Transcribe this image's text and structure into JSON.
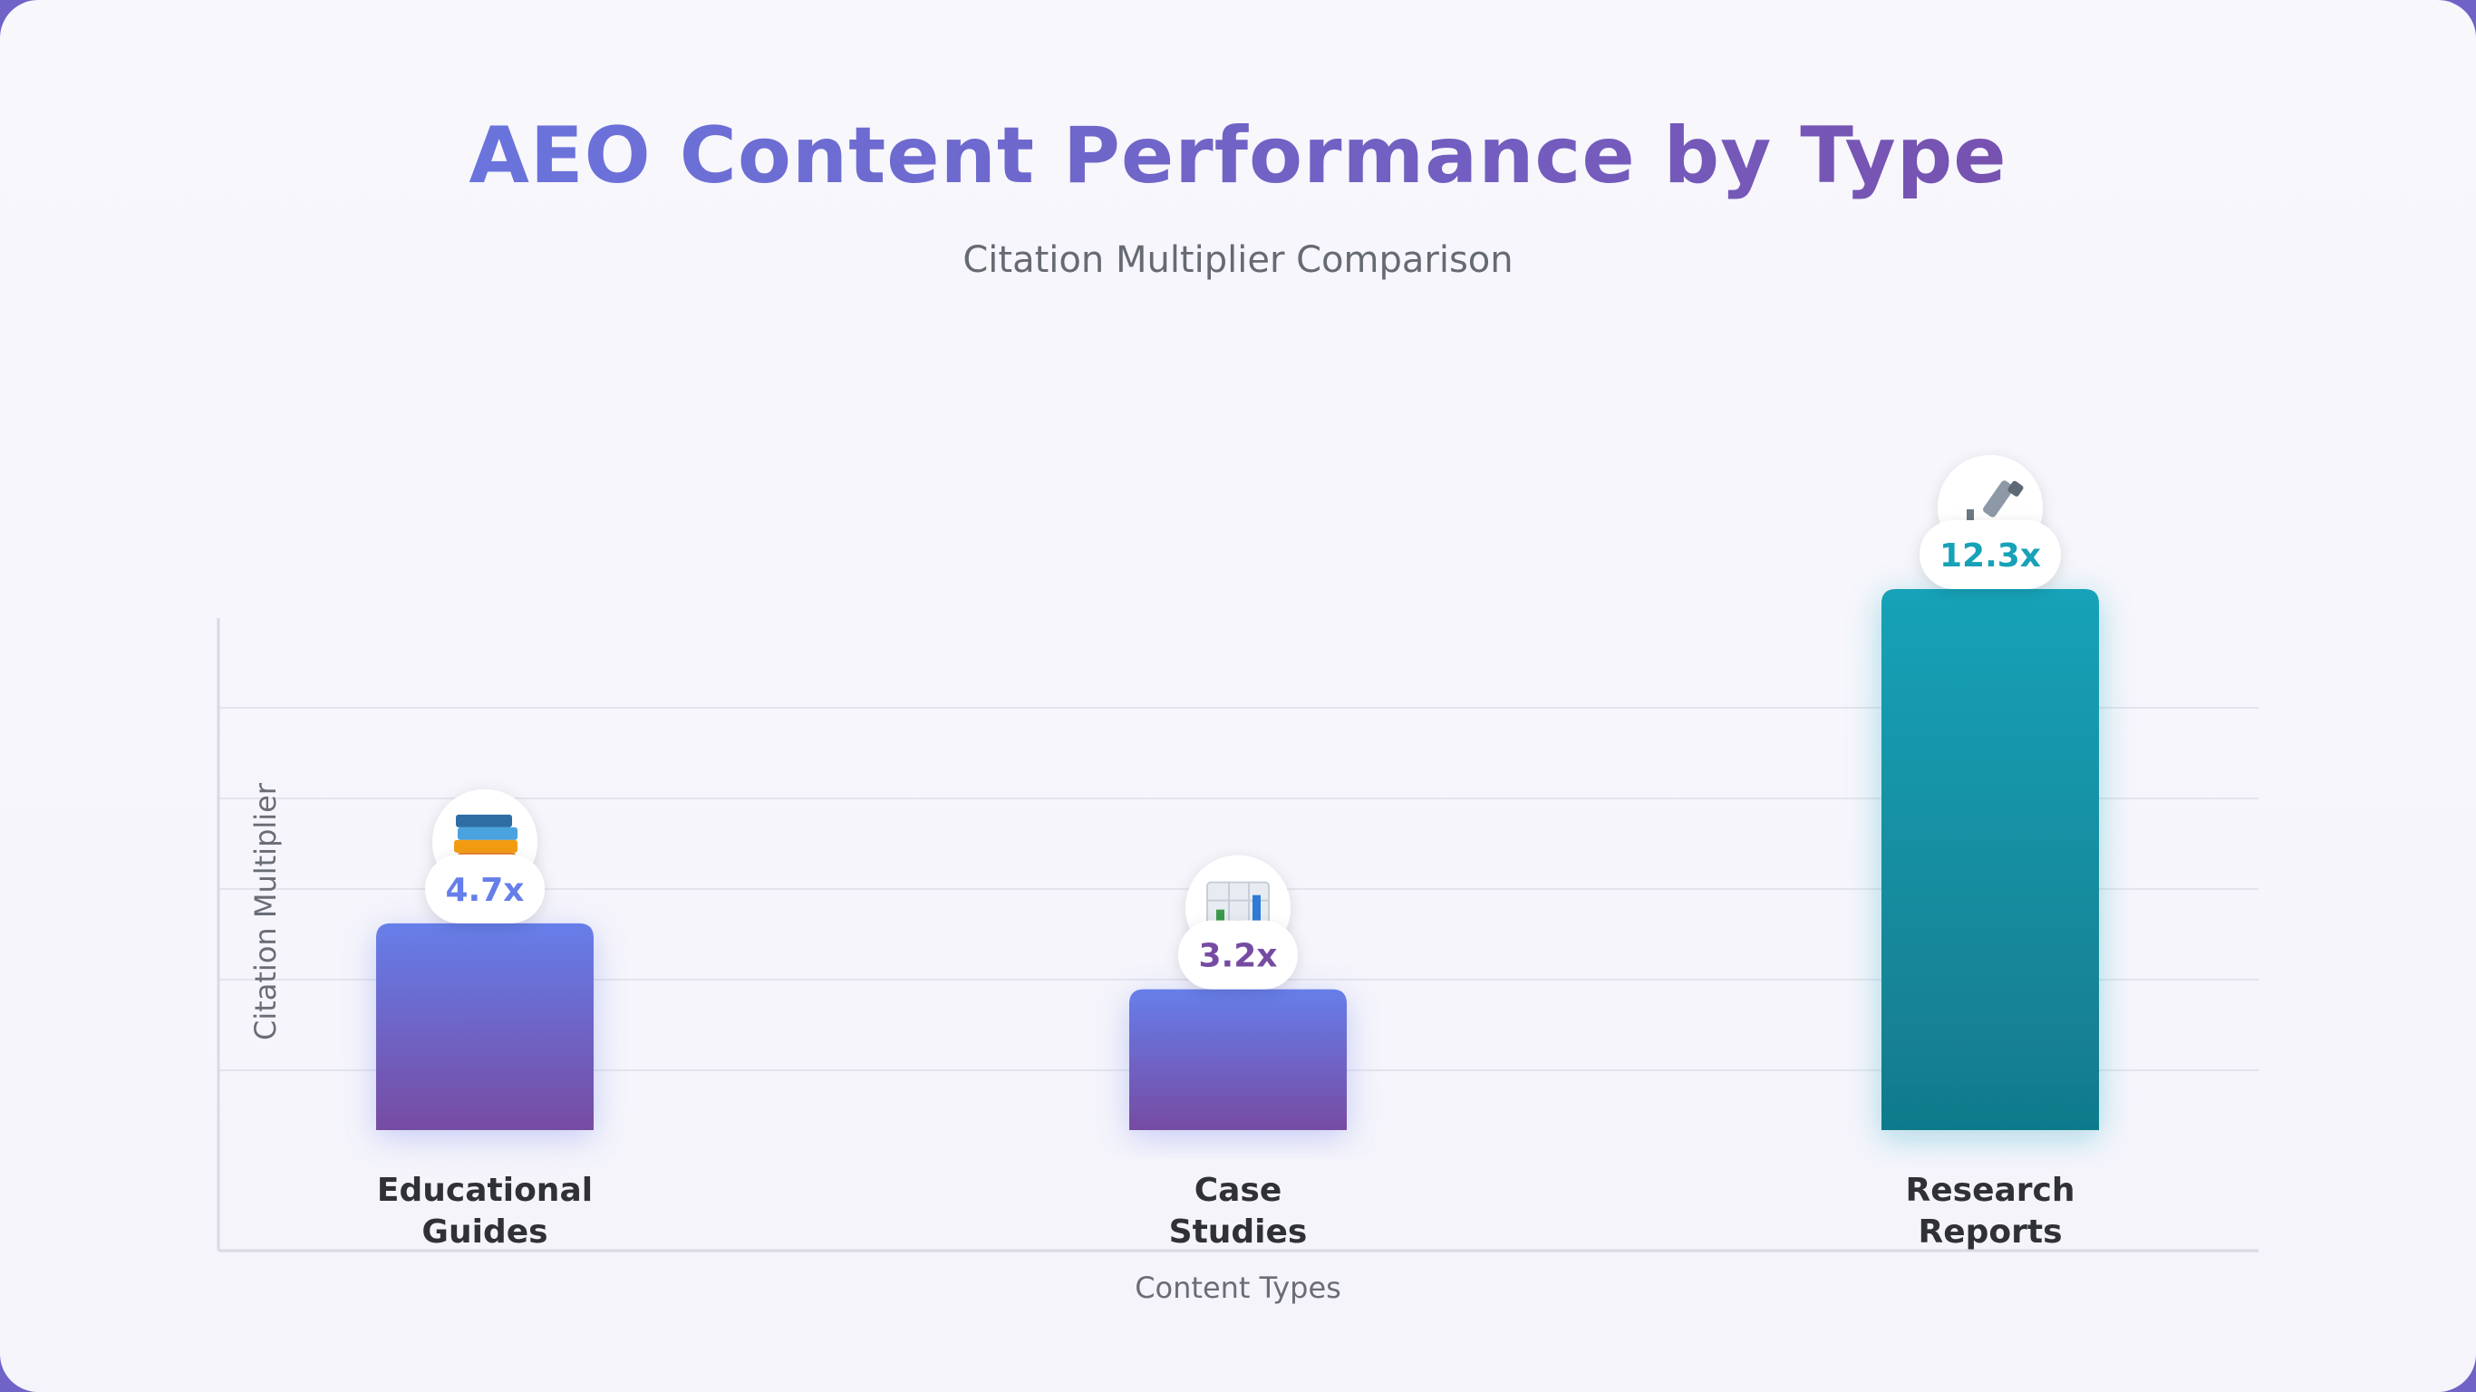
{
  "header": {
    "title": "AEO Content Performance by Type",
    "subtitle": "Citation Multiplier Comparison"
  },
  "chart_data": {
    "type": "bar",
    "title": "AEO Content Performance by Type",
    "subtitle": "Citation Multiplier Comparison",
    "categories": [
      "Educational\nGuides",
      "Case\nStudies",
      "Research\nReports"
    ],
    "values": [
      4.7,
      3.2,
      12.3
    ],
    "value_labels": [
      "4.7x",
      "3.2x",
      "12.3x"
    ],
    "icons": [
      "books-icon",
      "bar-chart-icon",
      "microscope-icon"
    ],
    "xlabel": "Content Types",
    "ylabel": "Citation Multiplier",
    "ylim": [
      0,
      12.3
    ],
    "grid": true,
    "legend": "none",
    "colors": {
      "primary_top": "#667eea",
      "primary_bottom": "#764ba2",
      "accent_top": "#17a2b8",
      "accent_bottom": "#117a8b",
      "label_primary": "#667eea",
      "label_secondary": "#764ba2",
      "label_accent": "#17a2b8"
    }
  }
}
